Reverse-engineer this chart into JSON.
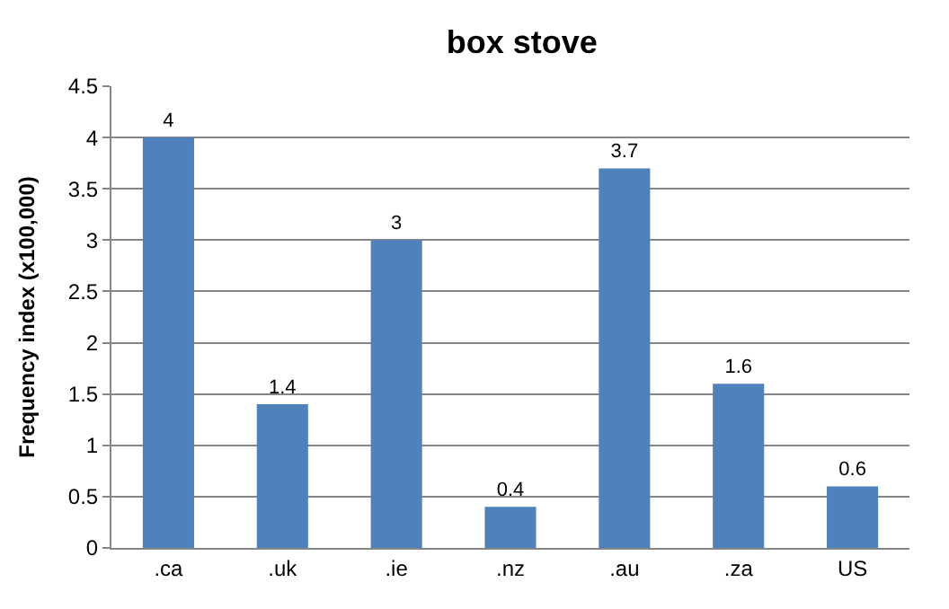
{
  "chart_data": {
    "type": "bar",
    "title": "box stove",
    "ylabel": "Frequency index (x100,000)",
    "categories": [
      ".ca",
      ".uk",
      ".ie",
      ".nz",
      ".au",
      ".za",
      "US"
    ],
    "values": [
      4,
      1.4,
      3,
      0.4,
      3.7,
      1.6,
      0.6
    ],
    "color": "#4f81bd",
    "ylim": [
      0,
      4.5
    ],
    "yticks": [
      0,
      0.5,
      1,
      1.5,
      2,
      2.5,
      3,
      3.5,
      4,
      4.5
    ],
    "grid": "y",
    "data_labels": true
  }
}
